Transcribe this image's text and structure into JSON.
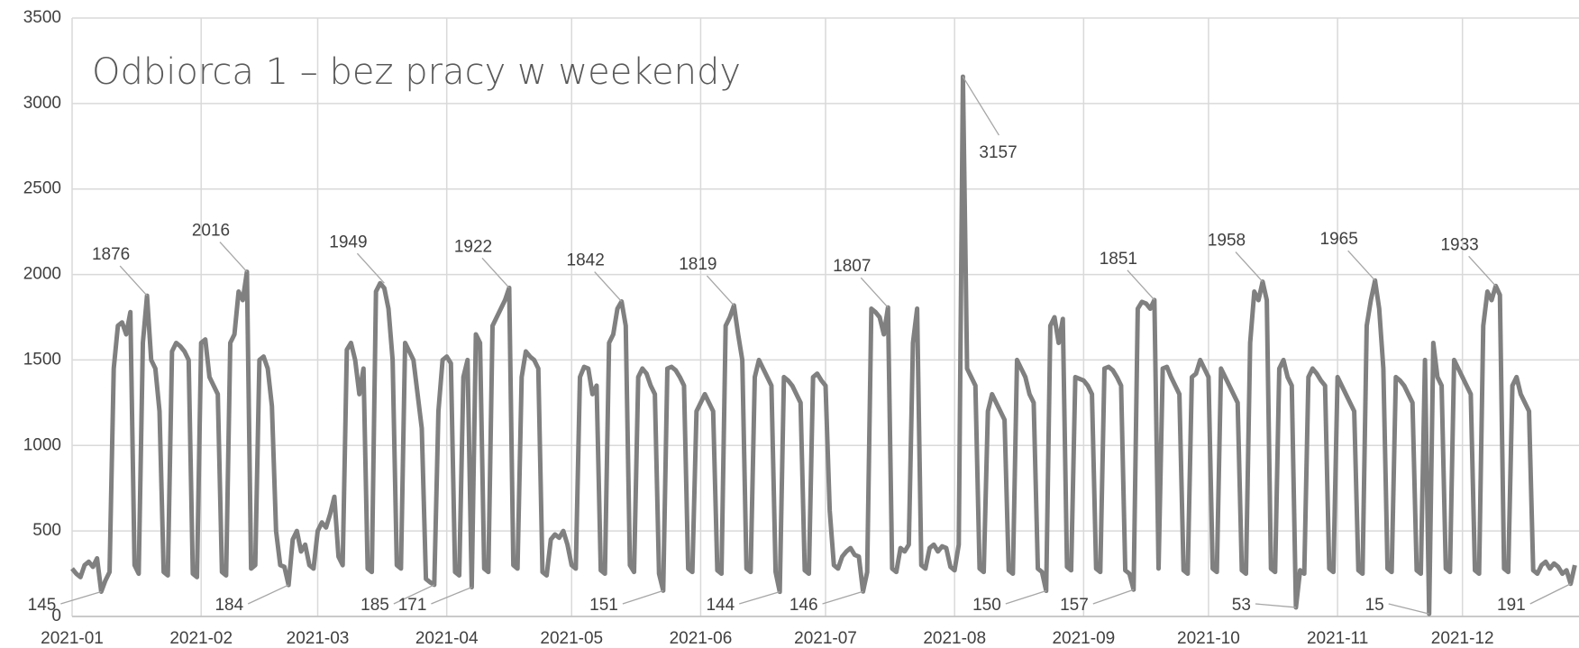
{
  "chart_data": {
    "type": "line",
    "title": "Odbiorca 1 – bez pracy w weekendy",
    "x": [
      0,
      1,
      2,
      3,
      4,
      5,
      6,
      7,
      8,
      9,
      10,
      11,
      12,
      13,
      14,
      15,
      16,
      17,
      18,
      19,
      20,
      21,
      22,
      23,
      24,
      25,
      26,
      27,
      28,
      29,
      30,
      31,
      32,
      33,
      34,
      35,
      36,
      37,
      38,
      39,
      40,
      41,
      42,
      43,
      44,
      45,
      46,
      47,
      48,
      49,
      50,
      51,
      52,
      53,
      54,
      55,
      56,
      57,
      58,
      59,
      60,
      61,
      62,
      63,
      64,
      65,
      66,
      67,
      68,
      69,
      70,
      71,
      72,
      73,
      74,
      75,
      76,
      77,
      78,
      79,
      80,
      81,
      82,
      83,
      84,
      85,
      86,
      87,
      88,
      89,
      90,
      91,
      92,
      93,
      94,
      95,
      96,
      97,
      98,
      99,
      100,
      101,
      102,
      103,
      104,
      105,
      106,
      107,
      108,
      109,
      110,
      111,
      112,
      113,
      114,
      115,
      116,
      117,
      118,
      119,
      120,
      121,
      122,
      123,
      124,
      125,
      126,
      127,
      128,
      129,
      130,
      131,
      132,
      133,
      134,
      135,
      136,
      137,
      138,
      139,
      140,
      141,
      142,
      143,
      144,
      145,
      146,
      147,
      148,
      149,
      150,
      151,
      152,
      153,
      154,
      155,
      156,
      157,
      158,
      159,
      160,
      161,
      162,
      163,
      164,
      165,
      166,
      167,
      168,
      169,
      170,
      171,
      172,
      173,
      174,
      175,
      176,
      177,
      178,
      179,
      180,
      181,
      182,
      183,
      184,
      185,
      186,
      187,
      188,
      189,
      190,
      191,
      192,
      193,
      194,
      195,
      196,
      197,
      198,
      199,
      200,
      201,
      202,
      203,
      204,
      205,
      206,
      207,
      208,
      209,
      210,
      211,
      212,
      213,
      214,
      215,
      216,
      217,
      218,
      219,
      220,
      221,
      222,
      223,
      224,
      225,
      226,
      227,
      228,
      229,
      230,
      231,
      232,
      233,
      234,
      235,
      236,
      237,
      238,
      239,
      240,
      241,
      242,
      243,
      244,
      245,
      246,
      247,
      248,
      249,
      250,
      251,
      252,
      253,
      254,
      255,
      256,
      257,
      258,
      259,
      260,
      261,
      262,
      263,
      264,
      265,
      266,
      267,
      268,
      269,
      270,
      271,
      272,
      273,
      274,
      275,
      276,
      277,
      278,
      279,
      280,
      281,
      282,
      283,
      284,
      285,
      286,
      287,
      288,
      289,
      290,
      291,
      292,
      293,
      294,
      295,
      296,
      297,
      298,
      299,
      300,
      301,
      302,
      303,
      304,
      305,
      306,
      307,
      308,
      309,
      310,
      311,
      312,
      313,
      314,
      315,
      316,
      317,
      318,
      319,
      320,
      321,
      322,
      323,
      324,
      325,
      326,
      327,
      328,
      329,
      330,
      331,
      332,
      333,
      334,
      335,
      336,
      337,
      338,
      339,
      340,
      341,
      342,
      343,
      344,
      345,
      346,
      347,
      348,
      349,
      350,
      351,
      352,
      353,
      354,
      355,
      356,
      357,
      358,
      359,
      360,
      361
    ],
    "series": [
      {
        "color": "#808080",
        "values": [
          280,
          250,
          230,
          300,
          320,
          290,
          340,
          145,
          210,
          260,
          1450,
          1700,
          1720,
          1650,
          1780,
          300,
          250,
          1600,
          1876,
          1500,
          1450,
          1200,
          260,
          240,
          1550,
          1600,
          1580,
          1550,
          1500,
          250,
          230,
          1600,
          1620,
          1400,
          1350,
          1300,
          260,
          240,
          1600,
          1650,
          1900,
          1850,
          2016,
          280,
          300,
          1500,
          1520,
          1450,
          1230,
          500,
          300,
          290,
          184,
          450,
          500,
          380,
          420,
          300,
          280,
          500,
          550,
          520,
          600,
          700,
          350,
          300,
          1560,
          1600,
          1500,
          1300,
          1450,
          280,
          260,
          1900,
          1949,
          1920,
          1800,
          1500,
          300,
          280,
          1600,
          1550,
          1500,
          1300,
          1100,
          220,
          200,
          185,
          1200,
          1500,
          1520,
          1480,
          260,
          240,
          1400,
          1500,
          171,
          1650,
          1600,
          280,
          260,
          1700,
          1750,
          1800,
          1850,
          1922,
          300,
          280,
          1400,
          1550,
          1520,
          1500,
          1450,
          260,
          240,
          450,
          480,
          460,
          500,
          420,
          300,
          280,
          1400,
          1460,
          1450,
          1300,
          1350,
          270,
          250,
          1600,
          1650,
          1800,
          1842,
          1700,
          300,
          260,
          1400,
          1450,
          1420,
          1350,
          1300,
          250,
          151,
          1450,
          1460,
          1440,
          1400,
          1350,
          280,
          260,
          1200,
          1250,
          1300,
          1250,
          1200,
          270,
          250,
          1700,
          1750,
          1819,
          1650,
          1500,
          280,
          260,
          1400,
          1500,
          1450,
          1400,
          1350,
          260,
          144,
          1400,
          1380,
          1350,
          1300,
          1250,
          270,
          250,
          1400,
          1420,
          1380,
          1350,
          620,
          300,
          280,
          350,
          380,
          400,
          360,
          350,
          146,
          260,
          1800,
          1780,
          1750,
          1650,
          1807,
          280,
          260,
          400,
          380,
          420,
          1600,
          1800,
          300,
          280,
          400,
          420,
          380,
          410,
          400,
          290,
          270,
          420,
          3157,
          1450,
          1400,
          1350,
          280,
          260,
          1200,
          1300,
          1250,
          1200,
          1150,
          270,
          250,
          1500,
          1450,
          1400,
          1300,
          1250,
          280,
          260,
          150,
          1700,
          1750,
          1600,
          1740,
          290,
          270,
          1400,
          1390,
          1380,
          1350,
          1300,
          280,
          260,
          1450,
          1460,
          1440,
          1400,
          1350,
          270,
          250,
          157,
          1800,
          1840,
          1830,
          1800,
          1851,
          280,
          1450,
          1460,
          1400,
          1350,
          1300,
          270,
          250,
          1400,
          1420,
          1500,
          1450,
          1400,
          280,
          260,
          1450,
          1400,
          1350,
          1300,
          1250,
          270,
          250,
          1600,
          1900,
          1850,
          1958,
          1850,
          280,
          260,
          1450,
          1500,
          1400,
          1350,
          53,
          270,
          250,
          1400,
          1450,
          1420,
          1380,
          1350,
          280,
          260,
          1400,
          1350,
          1300,
          1250,
          1200,
          270,
          250,
          1700,
          1850,
          1965,
          1800,
          1450,
          280,
          260,
          1400,
          1380,
          1350,
          1300,
          1250,
          270,
          250,
          1500,
          15,
          1600,
          1400,
          1350,
          280,
          260,
          1500,
          1450,
          1400,
          1350,
          1300,
          270,
          250,
          1700,
          1900,
          1850,
          1933,
          1880,
          280,
          260,
          1350,
          1400,
          1300,
          1250,
          1200,
          270,
          250,
          300,
          320,
          280,
          310,
          290,
          250,
          270,
          191,
          300
        ]
      }
    ],
    "annotations": [
      {
        "x": 18,
        "value": 1876
      },
      {
        "x": 7,
        "value": 145
      },
      {
        "x": 42,
        "value": 2016
      },
      {
        "x": 52,
        "value": 184
      },
      {
        "x": 75,
        "value": 1949
      },
      {
        "x": 87,
        "value": 185
      },
      {
        "x": 105,
        "value": 1922
      },
      {
        "x": 96,
        "value": 171
      },
      {
        "x": 132,
        "value": 1842
      },
      {
        "x": 142,
        "value": 151
      },
      {
        "x": 159,
        "value": 1819
      },
      {
        "x": 170,
        "value": 144
      },
      {
        "x": 196,
        "value": 1807
      },
      {
        "x": 190,
        "value": 146
      },
      {
        "x": 214,
        "value": 3157
      },
      {
        "x": 234,
        "value": 150
      },
      {
        "x": 260,
        "value": 1851
      },
      {
        "x": 255,
        "value": 157
      },
      {
        "x": 286,
        "value": 1958
      },
      {
        "x": 294,
        "value": 53
      },
      {
        "x": 313,
        "value": 1965
      },
      {
        "x": 326,
        "value": 15
      },
      {
        "x": 342,
        "value": 1933
      },
      {
        "x": 360,
        "value": 191
      }
    ],
    "xlim": [
      0,
      362
    ],
    "xticks": [
      {
        "value": 0,
        "label": "2021-01"
      },
      {
        "value": 31,
        "label": "2021-02"
      },
      {
        "value": 59,
        "label": "2021-03"
      },
      {
        "value": 90,
        "label": "2021-04"
      },
      {
        "value": 120,
        "label": "2021-05"
      },
      {
        "value": 151,
        "label": "2021-06"
      },
      {
        "value": 181,
        "label": "2021-07"
      },
      {
        "value": 212,
        "label": "2021-08"
      },
      {
        "value": 243,
        "label": "2021-09"
      },
      {
        "value": 273,
        "label": "2021-10"
      },
      {
        "value": 304,
        "label": "2021-11"
      },
      {
        "value": 334,
        "label": "2021-12"
      }
    ],
    "ylim": [
      0,
      3500
    ],
    "yticks": [
      0,
      500,
      1000,
      1500,
      2000,
      2500,
      3000,
      3500
    ],
    "grid": true
  }
}
